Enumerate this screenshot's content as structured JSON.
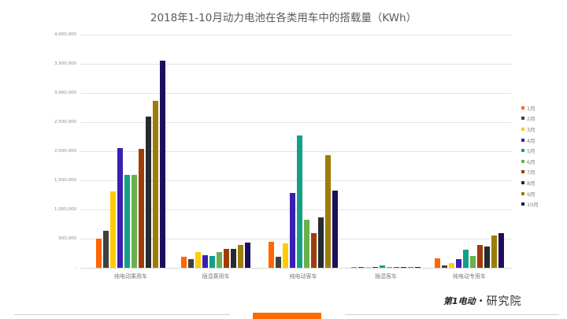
{
  "title": "2018年1-10月动力电池在各类用车中的搭载量（KWh）",
  "chart_data": {
    "type": "bar",
    "title": "2018年1-10月动力电池在各类用车中的搭载量（KWh）",
    "xlabel": "",
    "ylabel": "",
    "ylim": [
      0,
      4000000
    ],
    "grid": true,
    "legend_position": "right",
    "y_ticks": [
      "-",
      "500,000",
      "1,000,000",
      "1,500,000",
      "2,000,000",
      "2,500,000",
      "3,000,000",
      "3,500,000",
      "4,000,000"
    ],
    "categories": [
      "纯电动乘用车",
      "插混乘用车",
      "纯电动客车",
      "插混客车",
      "纯电动专用车"
    ],
    "series": [
      {
        "name": "1月",
        "color": "#ff6600",
        "values": [
          500000,
          190000,
          440000,
          10000,
          160000
        ]
      },
      {
        "name": "2月",
        "color": "#404040",
        "values": [
          630000,
          150000,
          190000,
          10000,
          40000
        ]
      },
      {
        "name": "3月",
        "color": "#ffcc00",
        "values": [
          1310000,
          270000,
          420000,
          5000,
          80000
        ]
      },
      {
        "name": "4月",
        "color": "#3b1fb3",
        "values": [
          2050000,
          220000,
          1290000,
          15000,
          150000
        ]
      },
      {
        "name": "5月",
        "color": "#13a085",
        "values": [
          1600000,
          200000,
          2270000,
          40000,
          310000
        ]
      },
      {
        "name": "6月",
        "color": "#6ab04c",
        "values": [
          1600000,
          270000,
          820000,
          10000,
          200000
        ]
      },
      {
        "name": "7月",
        "color": "#9e3d0a",
        "values": [
          2040000,
          325000,
          590000,
          15000,
          390000
        ]
      },
      {
        "name": "8月",
        "color": "#262b30",
        "values": [
          2590000,
          325000,
          870000,
          15000,
          360000
        ]
      },
      {
        "name": "9月",
        "color": "#9c7d0a",
        "values": [
          2860000,
          390000,
          1930000,
          10000,
          560000
        ]
      },
      {
        "name": "10月",
        "color": "#1e0f5e",
        "values": [
          3560000,
          430000,
          1330000,
          10000,
          590000
        ]
      }
    ]
  },
  "logo": {
    "mark": "第1电动",
    "separator": "•",
    "text": "研究院"
  }
}
